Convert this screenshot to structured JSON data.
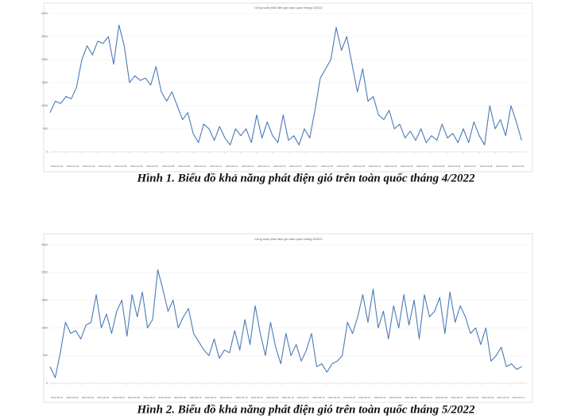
{
  "chart_data": [
    {
      "type": "line",
      "title": "Công suất phát điện gió toàn quốc tháng 4/2022",
      "color": "#4a7ab8",
      "grid": true,
      "ylim": [
        0,
        3000
      ],
      "yticks": [
        0,
        500,
        1000,
        1500,
        2000,
        2500,
        3000
      ],
      "xlim": [
        0,
        720
      ],
      "xticks": [
        {
          "value": 0,
          "label": "2022-04-01"
        },
        {
          "value": 24,
          "label": "2022-04-02"
        },
        {
          "value": 48,
          "label": "2022-04-03"
        },
        {
          "value": 72,
          "label": "2022-04-04"
        },
        {
          "value": 96,
          "label": "2022-04-05"
        },
        {
          "value": 120,
          "label": "2022-04-06"
        },
        {
          "value": 144,
          "label": "2022-04-07"
        },
        {
          "value": 168,
          "label": "2022-04-08"
        },
        {
          "value": 192,
          "label": "2022-04-09"
        },
        {
          "value": 216,
          "label": "2022-04-10"
        },
        {
          "value": 240,
          "label": "2022-04-11"
        },
        {
          "value": 264,
          "label": "2022-04-12"
        },
        {
          "value": 288,
          "label": "2022-04-13"
        },
        {
          "value": 312,
          "label": "2022-04-14"
        },
        {
          "value": 336,
          "label": "2022-04-15"
        },
        {
          "value": 360,
          "label": "2022-04-16"
        },
        {
          "value": 384,
          "label": "2022-04-17"
        },
        {
          "value": 408,
          "label": "2022-04-18"
        },
        {
          "value": 432,
          "label": "2022-04-19"
        },
        {
          "value": 456,
          "label": "2022-04-20"
        },
        {
          "value": 480,
          "label": "2022-04-21"
        },
        {
          "value": 504,
          "label": "2022-04-22"
        },
        {
          "value": 528,
          "label": "2022-04-23"
        },
        {
          "value": 552,
          "label": "2022-04-24"
        },
        {
          "value": 576,
          "label": "2022-04-25"
        },
        {
          "value": 600,
          "label": "2022-04-26"
        },
        {
          "value": 624,
          "label": "2022-04-27"
        },
        {
          "value": 648,
          "label": "2022-04-28"
        },
        {
          "value": 672,
          "label": "2022-04-29"
        },
        {
          "value": 696,
          "label": "2022-04-30"
        }
      ],
      "x": [
        0,
        8,
        16,
        24,
        32,
        40,
        48,
        56,
        64,
        72,
        80,
        88,
        96,
        104,
        112,
        120,
        128,
        136,
        144,
        152,
        160,
        168,
        176,
        184,
        192,
        200,
        208,
        216,
        224,
        232,
        240,
        248,
        256,
        264,
        272,
        280,
        288,
        296,
        304,
        312,
        320,
        328,
        336,
        344,
        352,
        360,
        368,
        376,
        384,
        392,
        400,
        408,
        416,
        424,
        432,
        440,
        448,
        456,
        464,
        472,
        480,
        488,
        496,
        504,
        512,
        520,
        528,
        536,
        544,
        552,
        560,
        568,
        576,
        584,
        592,
        600,
        608,
        616,
        624,
        632,
        640,
        648,
        656,
        664,
        672,
        680,
        688,
        696,
        704,
        712
      ],
      "values": [
        850,
        1100,
        1050,
        1200,
        1150,
        1400,
        2000,
        2300,
        2100,
        2400,
        2350,
        2500,
        1900,
        2750,
        2300,
        1500,
        1650,
        1550,
        1600,
        1450,
        1850,
        1300,
        1100,
        1300,
        1000,
        700,
        850,
        400,
        200,
        600,
        500,
        250,
        550,
        300,
        150,
        500,
        350,
        500,
        200,
        800,
        300,
        650,
        350,
        200,
        800,
        250,
        350,
        150,
        500,
        300,
        900,
        1600,
        1800,
        2000,
        2700,
        2200,
        2500,
        1900,
        1300,
        1800,
        1100,
        1200,
        800,
        700,
        900,
        500,
        600,
        300,
        450,
        250,
        500,
        200,
        350,
        250,
        600,
        300,
        400,
        200,
        500,
        200,
        650,
        350,
        150,
        1000,
        500,
        700,
        350,
        1000,
        650,
        250
      ]
    },
    {
      "type": "line",
      "title": "Công suất phát điện gió toàn quốc tháng 5/2022",
      "color": "#4a7ab8",
      "grid": true,
      "ylim": [
        0,
        2500
      ],
      "yticks": [
        0,
        500,
        1000,
        1500,
        2000,
        2500
      ],
      "xlim": [
        0,
        744
      ],
      "xticks": [
        {
          "value": 0,
          "label": "2022-05-01"
        },
        {
          "value": 24,
          "label": "2022-05-02"
        },
        {
          "value": 48,
          "label": "2022-05-03"
        },
        {
          "value": 72,
          "label": "2022-05-04"
        },
        {
          "value": 96,
          "label": "2022-05-05"
        },
        {
          "value": 120,
          "label": "2022-05-06"
        },
        {
          "value": 144,
          "label": "2022-05-07"
        },
        {
          "value": 168,
          "label": "2022-05-08"
        },
        {
          "value": 192,
          "label": "2022-05-09"
        },
        {
          "value": 216,
          "label": "2022-05-10"
        },
        {
          "value": 240,
          "label": "2022-05-11"
        },
        {
          "value": 264,
          "label": "2022-05-12"
        },
        {
          "value": 288,
          "label": "2022-05-13"
        },
        {
          "value": 312,
          "label": "2022-05-14"
        },
        {
          "value": 336,
          "label": "2022-05-15"
        },
        {
          "value": 360,
          "label": "2022-05-16"
        },
        {
          "value": 384,
          "label": "2022-05-17"
        },
        {
          "value": 408,
          "label": "2022-05-18"
        },
        {
          "value": 432,
          "label": "2022-05-19"
        },
        {
          "value": 456,
          "label": "2022-05-20"
        },
        {
          "value": 480,
          "label": "2022-05-21"
        },
        {
          "value": 504,
          "label": "2022-05-22"
        },
        {
          "value": 528,
          "label": "2022-05-23"
        },
        {
          "value": 552,
          "label": "2022-05-24"
        },
        {
          "value": 576,
          "label": "2022-05-25"
        },
        {
          "value": 600,
          "label": "2022-05-26"
        },
        {
          "value": 624,
          "label": "2022-05-27"
        },
        {
          "value": 648,
          "label": "2022-05-28"
        },
        {
          "value": 672,
          "label": "2022-05-29"
        },
        {
          "value": 696,
          "label": "2022-05-30"
        },
        {
          "value": 720,
          "label": "2022-05-31"
        }
      ],
      "x": [
        0,
        8,
        16,
        24,
        32,
        40,
        48,
        56,
        64,
        72,
        80,
        88,
        96,
        104,
        112,
        120,
        128,
        136,
        144,
        152,
        160,
        168,
        176,
        184,
        192,
        200,
        208,
        216,
        224,
        232,
        240,
        248,
        256,
        264,
        272,
        280,
        288,
        296,
        304,
        312,
        320,
        328,
        336,
        344,
        352,
        360,
        368,
        376,
        384,
        392,
        400,
        408,
        416,
        424,
        432,
        440,
        448,
        456,
        464,
        472,
        480,
        488,
        496,
        504,
        512,
        520,
        528,
        536,
        544,
        552,
        560,
        568,
        576,
        584,
        592,
        600,
        608,
        616,
        624,
        632,
        640,
        648,
        656,
        664,
        672,
        680,
        688,
        696,
        704,
        712,
        720,
        728,
        736
      ],
      "values": [
        300,
        100,
        550,
        1100,
        900,
        950,
        800,
        1050,
        1100,
        1600,
        1000,
        1250,
        900,
        1300,
        1500,
        850,
        1600,
        1200,
        1650,
        1000,
        1150,
        2050,
        1700,
        1300,
        1500,
        1000,
        1200,
        1350,
        900,
        750,
        600,
        500,
        800,
        450,
        600,
        550,
        950,
        600,
        1150,
        700,
        1400,
        900,
        500,
        1100,
        650,
        350,
        900,
        500,
        700,
        400,
        600,
        900,
        300,
        350,
        200,
        350,
        400,
        500,
        1100,
        900,
        1200,
        1600,
        1100,
        1700,
        1000,
        1300,
        800,
        1400,
        1000,
        1600,
        1050,
        1500,
        800,
        1600,
        1200,
        1300,
        1550,
        900,
        1650,
        1100,
        1400,
        1200,
        900,
        1000,
        700,
        1000,
        400,
        500,
        650,
        300,
        350,
        250,
        300
      ]
    }
  ],
  "captions": [
    "Hình 1. Biểu đồ khả năng phát điện gió trên toàn quốc tháng 4/2022",
    "Hình 2. Biểu đồ khả năng phát điện gió trên toàn quốc tháng 5/2022"
  ]
}
